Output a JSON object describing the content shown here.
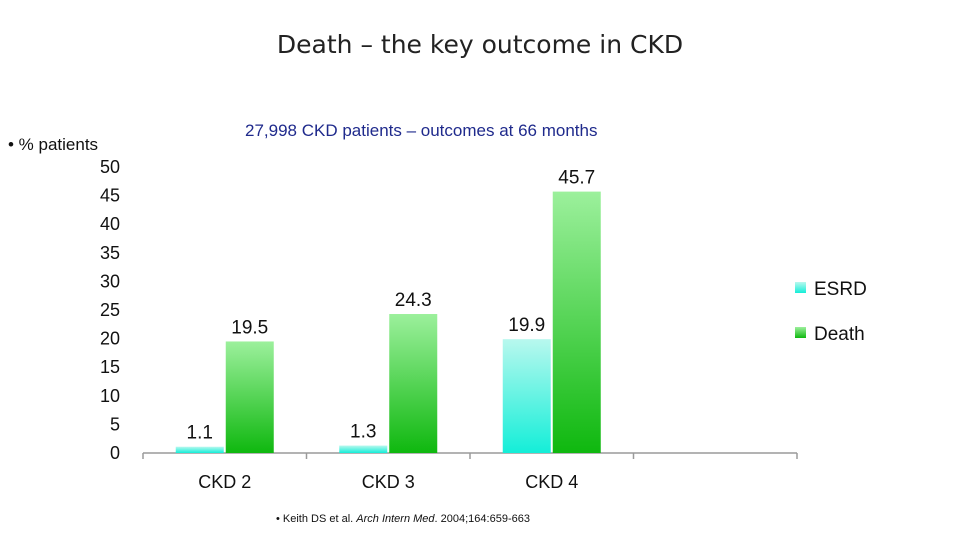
{
  "slide": {
    "title": "Death – the key outcome in CKD",
    "ylabel_bullet": "• % patients",
    "subtitle": "27,998 CKD patients – outcomes at 66 months",
    "citation": {
      "prefix": "• Keith DS et al. ",
      "journal": "Arch Intern Med",
      "suffix": ". 2004;164:659-663"
    }
  },
  "chart_data": {
    "type": "bar",
    "categories": [
      "CKD 2",
      "CKD 3",
      "CKD 4"
    ],
    "series": [
      {
        "name": "ESRD",
        "values": [
          1.1,
          1.3,
          19.9
        ],
        "color": "#22e8d8"
      },
      {
        "name": "Death",
        "values": [
          19.5,
          24.3,
          45.7
        ],
        "color": "#22c022"
      }
    ],
    "data_labels": [
      [
        "1.1",
        "1.3",
        "19.9"
      ],
      [
        "19.5",
        "24.3",
        "45.7"
      ]
    ],
    "ylim": [
      0,
      50
    ],
    "yticks": [
      0,
      5,
      10,
      15,
      20,
      25,
      30,
      35,
      40,
      45,
      50
    ],
    "legend_position": "right",
    "grid": false
  }
}
